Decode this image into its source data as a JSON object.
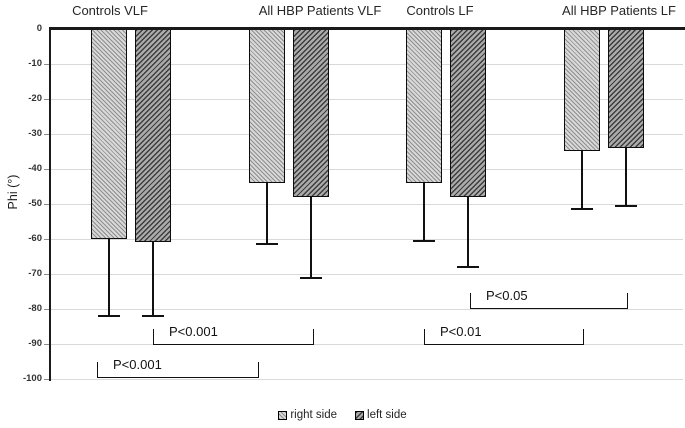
{
  "chart_data": {
    "type": "bar",
    "title": "",
    "xlabel": "",
    "ylabel": "Phi (°)",
    "ylim": [
      -100,
      0
    ],
    "ytick_step": 10,
    "ytick_labels": [
      "0",
      "-10",
      "-20",
      "-30",
      "-40",
      "-50",
      "-60",
      "-70",
      "-80",
      "-90",
      "-100"
    ],
    "grid": "horizontal",
    "categories": [
      "Controls VLF",
      "All HBP Patients VLF",
      "Controls LF",
      "All HBP Patients LF"
    ],
    "series": [
      {
        "name": "right side",
        "values": [
          -60,
          -44,
          -44,
          -35
        ],
        "error_minus": [
          22,
          17.5,
          16.5,
          16.5
        ]
      },
      {
        "name": "left side",
        "values": [
          -61,
          -48,
          -48,
          -34
        ],
        "error_minus": [
          21,
          23,
          20,
          16.5
        ]
      }
    ],
    "significance_brackets": [
      {
        "label": "P<0.001",
        "series": "right side",
        "between": [
          "Controls VLF",
          "All HBP Patients VLF"
        ],
        "y_level": -99.5
      },
      {
        "label": "P<0.001",
        "series": "left side",
        "between": [
          "Controls VLF",
          "All HBP Patients VLF"
        ],
        "y_level": -90.3
      },
      {
        "label": "P<0.01",
        "series": "right side",
        "between": [
          "Controls LF",
          "All HBP Patients LF"
        ],
        "y_level": -90.3
      },
      {
        "label": "P<0.05",
        "series": "left side",
        "between": [
          "Controls LF",
          "All HBP Patients LF"
        ],
        "y_level": -80
      }
    ],
    "legend": {
      "position": "bottom",
      "entries": [
        "right side",
        "left side"
      ]
    }
  },
  "colors": {
    "axis": "#1a1a1a",
    "gridline": "#d9d9d9",
    "bar_border": "#0d0d0d",
    "right_side_base": "#d8d8d8",
    "right_side_line": "#8f8f8f",
    "left_side_base": "#ababab",
    "left_side_line": "#3d3d3d",
    "text": "#262626"
  }
}
